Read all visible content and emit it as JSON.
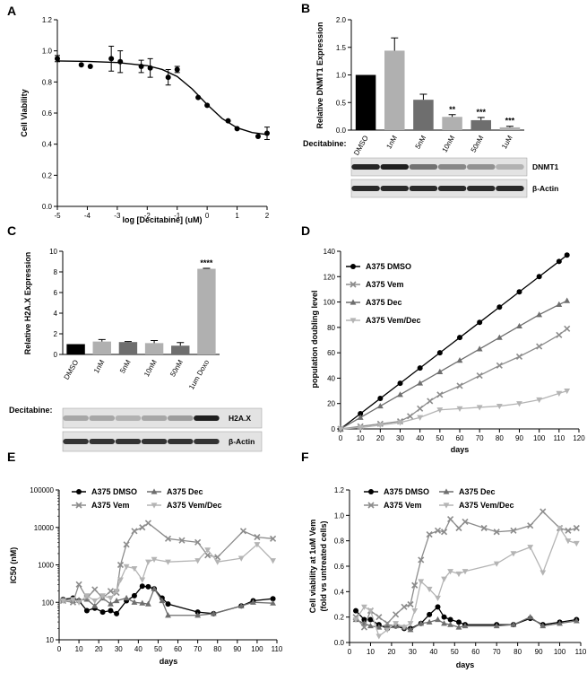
{
  "figure": {
    "colors": {
      "black": "#000000",
      "dmso_bar": "#000000",
      "bar_gray_light": "#b0b0b0",
      "bar_gray_dark": "#6e6e6e",
      "vem": "#8c8c8c",
      "dec": "#6e6e6e",
      "vem_dec": "#b4b4b4",
      "blot_bg": "#e3e3e3"
    }
  },
  "chart_data": [
    {
      "panel": "A",
      "type": "scatter",
      "title": "",
      "xlabel": "log [Decitabine] (uM)",
      "ylabel": "Cell Viability",
      "xlim": [
        -5,
        2
      ],
      "ylim": [
        0,
        1.2
      ],
      "xticks": [
        "-5",
        "-4",
        "-3",
        "-2",
        "-1",
        "0",
        "1",
        "2"
      ],
      "yticks": [
        "0.0",
        "0.2",
        "0.4",
        "0.6",
        "0.8",
        "1.0",
        "1.2"
      ],
      "points": {
        "x": [
          -5,
          -4.2,
          -3.9,
          -3.2,
          -2.9,
          -2.2,
          -1.9,
          -1.3,
          -1.0,
          -0.3,
          0.0,
          0.7,
          1.0,
          1.7,
          2.0
        ],
        "y": [
          0.95,
          0.91,
          0.9,
          0.95,
          0.93,
          0.9,
          0.89,
          0.83,
          0.88,
          0.7,
          0.65,
          0.55,
          0.5,
          0.45,
          0.47
        ],
        "err": [
          0.02,
          0.01,
          0.01,
          0.08,
          0.07,
          0.04,
          0.06,
          0.05,
          0.02,
          0.01,
          0.01,
          0.01,
          0.01,
          0.01,
          0.04
        ]
      },
      "fit": {
        "x": [
          -5,
          -4,
          -3,
          -2,
          -1.5,
          -1,
          -0.5,
          0,
          0.5,
          1,
          1.5,
          2
        ],
        "y": [
          0.935,
          0.932,
          0.925,
          0.905,
          0.88,
          0.835,
          0.755,
          0.655,
          0.565,
          0.505,
          0.475,
          0.462
        ]
      }
    },
    {
      "panel": "B",
      "type": "bar",
      "title": "",
      "xlabel": "Decitabine:",
      "ylabel": "Relative DNMT1 Expression",
      "ylim": [
        0,
        2.0
      ],
      "yticks": [
        "0.0",
        "0.5",
        "1.0",
        "1.5",
        "2.0"
      ],
      "categories": [
        "DMSO",
        "1nM",
        "5nM",
        "10nM",
        "50nM",
        "1uM"
      ],
      "values": [
        1.0,
        1.44,
        0.55,
        0.24,
        0.18,
        0.05
      ],
      "errors": [
        0.0,
        0.23,
        0.1,
        0.04,
        0.05,
        0.02
      ],
      "bar_color_keys": [
        "black",
        "bar_gray_light",
        "bar_gray_dark",
        "bar_gray_light",
        "bar_gray_dark",
        "bar_gray_light"
      ],
      "significance": [
        "",
        "",
        "",
        "**",
        "***",
        "***"
      ],
      "blots": [
        "DNMT1",
        "β-Actin"
      ],
      "blot_intensity": [
        [
          0.92,
          0.95,
          0.55,
          0.45,
          0.4,
          0.25
        ],
        [
          0.9,
          0.9,
          0.9,
          0.9,
          0.9,
          0.9
        ]
      ]
    },
    {
      "panel": "C",
      "type": "bar",
      "title": "",
      "xlabel": "Decitabine:",
      "ylabel": "Relative H2A.X Expression",
      "ylim": [
        0,
        10
      ],
      "yticks": [
        "0",
        "2",
        "4",
        "6",
        "8",
        "10"
      ],
      "categories": [
        "DMSO",
        "1nM",
        "5nM",
        "10nM",
        "50nM",
        "1um Doxo"
      ],
      "values": [
        1.0,
        1.25,
        1.2,
        1.1,
        0.85,
        8.3
      ],
      "errors": [
        0.0,
        0.2,
        0.05,
        0.25,
        0.3,
        0.05
      ],
      "bar_color_keys": [
        "black",
        "bar_gray_light",
        "bar_gray_dark",
        "bar_gray_light",
        "bar_gray_dark",
        "bar_gray_light"
      ],
      "significance": [
        "",
        "",
        "",
        "",
        "",
        "****"
      ],
      "blots": [
        "H2A.X",
        "β-Actin"
      ],
      "blot_intensity": [
        [
          0.3,
          0.3,
          0.25,
          0.3,
          0.35,
          0.95
        ],
        [
          0.85,
          0.85,
          0.85,
          0.85,
          0.85,
          0.85
        ]
      ]
    },
    {
      "panel": "D",
      "type": "line",
      "title": "",
      "xlabel": "days",
      "ylabel": "population doubling level",
      "xlim": [
        0,
        120
      ],
      "ylim": [
        0,
        140
      ],
      "xticks": [
        "0",
        "10",
        "20",
        "30",
        "40",
        "50",
        "60",
        "70",
        "80",
        "90",
        "100",
        "110",
        "120"
      ],
      "yticks": [
        "0",
        "20",
        "40",
        "60",
        "80",
        "100",
        "120",
        "140"
      ],
      "legend": [
        "A375 DMSO",
        "A375 Vem",
        "A375 Dec",
        "A375 Vem/Dec"
      ],
      "series": [
        {
          "name": "A375 DMSO",
          "color_key": "black",
          "marker": "circle",
          "x": [
            0,
            10,
            20,
            30,
            40,
            50,
            60,
            70,
            80,
            90,
            100,
            110,
            114
          ],
          "y": [
            0,
            12,
            24,
            36,
            48,
            60,
            72,
            84,
            96,
            108,
            120,
            132,
            137
          ]
        },
        {
          "name": "A375 Vem",
          "color_key": "vem",
          "marker": "x",
          "x": [
            0,
            10,
            20,
            30,
            35,
            40,
            45,
            50,
            60,
            70,
            80,
            90,
            100,
            110,
            114
          ],
          "y": [
            0,
            2,
            4,
            6,
            10,
            16,
            22,
            27,
            34,
            42,
            50,
            57,
            65,
            74,
            79
          ]
        },
        {
          "name": "A375 Dec",
          "color_key": "dec",
          "marker": "triangle",
          "x": [
            0,
            10,
            20,
            30,
            40,
            50,
            60,
            70,
            80,
            90,
            100,
            110,
            114
          ],
          "y": [
            0,
            9,
            18,
            27,
            36,
            45,
            54,
            63,
            72,
            81,
            90,
            98,
            101
          ]
        },
        {
          "name": "A375 Vem/Dec",
          "color_key": "vem_dec",
          "marker": "triangle-down",
          "x": [
            0,
            10,
            20,
            30,
            40,
            50,
            60,
            70,
            80,
            90,
            100,
            110,
            114
          ],
          "y": [
            0,
            1,
            3,
            5,
            9,
            15,
            16,
            17,
            18,
            20,
            23,
            28,
            30
          ]
        }
      ]
    },
    {
      "panel": "E",
      "type": "line",
      "title": "",
      "xlabel": "days",
      "ylabel": "IC50 (nM)",
      "xlim": [
        0,
        110
      ],
      "yscale": "log",
      "ylim": [
        10,
        100000
      ],
      "xticks": [
        "0",
        "10",
        "20",
        "30",
        "40",
        "50",
        "60",
        "70",
        "80",
        "90",
        "100",
        "110"
      ],
      "yticks": [
        "10",
        "100",
        "1000",
        "10000",
        "100000"
      ],
      "legend": [
        "A375 DMSO",
        "A375 Dec",
        "A375 Vem",
        "A375 Vem/Dec"
      ],
      "series": [
        {
          "name": "A375 DMSO",
          "color_key": "black",
          "marker": "circle",
          "x": [
            2,
            7,
            10,
            14,
            18,
            22,
            26,
            29,
            34,
            38,
            42,
            45,
            48,
            52,
            55,
            70,
            78,
            92,
            98,
            108
          ],
          "y": [
            120,
            130,
            110,
            60,
            70,
            55,
            60,
            50,
            110,
            150,
            270,
            260,
            230,
            130,
            90,
            55,
            50,
            80,
            110,
            125
          ]
        },
        {
          "name": "A375 Dec",
          "color_key": "dec",
          "marker": "triangle",
          "x": [
            2,
            7,
            10,
            14,
            18,
            22,
            26,
            29,
            34,
            38,
            42,
            45,
            48,
            52,
            55,
            70,
            78,
            92,
            98,
            108
          ],
          "y": [
            120,
            110,
            115,
            120,
            80,
            130,
            90,
            110,
            130,
            100,
            95,
            90,
            230,
            110,
            45,
            45,
            50,
            80,
            100,
            95
          ]
        },
        {
          "name": "A375 Vem",
          "color_key": "vem",
          "marker": "x",
          "x": [
            2,
            7,
            10,
            14,
            18,
            22,
            26,
            29,
            31,
            34,
            38,
            42,
            45,
            55,
            62,
            70,
            75,
            80,
            93,
            100,
            108
          ],
          "y": [
            110,
            100,
            300,
            130,
            220,
            130,
            200,
            180,
            1000,
            3500,
            8000,
            10000,
            13000,
            5000,
            4500,
            4000,
            1800,
            1600,
            8000,
            5500,
            5000
          ]
        },
        {
          "name": "A375 Vem/Dec",
          "color_key": "vem_dec",
          "marker": "triangle-down",
          "x": [
            2,
            7,
            10,
            14,
            18,
            22,
            26,
            29,
            31,
            34,
            38,
            42,
            45,
            48,
            55,
            70,
            75,
            80,
            92,
            100,
            108
          ],
          "y": [
            110,
            120,
            100,
            150,
            110,
            150,
            130,
            200,
            400,
            900,
            800,
            400,
            1200,
            1400,
            1200,
            1300,
            2500,
            1200,
            1500,
            3500,
            1300
          ]
        }
      ]
    },
    {
      "panel": "F",
      "type": "line",
      "title": "",
      "xlabel": "days",
      "ylabel": "Cell viability at 1uM Vem (fold vs untreated cells)",
      "xlim": [
        0,
        110
      ],
      "ylim": [
        0.0,
        1.2
      ],
      "xticks": [
        "0",
        "10",
        "20",
        "30",
        "40",
        "50",
        "60",
        "70",
        "80",
        "90",
        "100",
        "110"
      ],
      "yticks": [
        "0.0",
        "0.2",
        "0.4",
        "0.6",
        "0.8",
        "1.0",
        "1.2"
      ],
      "legend": [
        "A375 DMSO",
        "A375 Dec",
        "A375 Vem",
        "A375 Vem/Dec"
      ],
      "series": [
        {
          "name": "A375 DMSO",
          "color_key": "black",
          "marker": "circle",
          "x": [
            3,
            7,
            10,
            14,
            18,
            22,
            26,
            29,
            34,
            38,
            42,
            45,
            48,
            52,
            55,
            70,
            78,
            86,
            92,
            100,
            108
          ],
          "y": [
            0.25,
            0.18,
            0.18,
            0.14,
            0.11,
            0.13,
            0.11,
            0.11,
            0.15,
            0.22,
            0.28,
            0.2,
            0.18,
            0.16,
            0.14,
            0.14,
            0.14,
            0.19,
            0.14,
            0.16,
            0.18
          ]
        },
        {
          "name": "A375 Dec",
          "color_key": "dec",
          "marker": "triangle",
          "x": [
            3,
            7,
            10,
            14,
            18,
            22,
            26,
            29,
            34,
            38,
            42,
            45,
            48,
            52,
            55,
            70,
            78,
            86,
            92,
            100,
            108
          ],
          "y": [
            0.18,
            0.15,
            0.13,
            0.12,
            0.14,
            0.13,
            0.12,
            0.1,
            0.15,
            0.16,
            0.18,
            0.15,
            0.14,
            0.12,
            0.13,
            0.13,
            0.14,
            0.2,
            0.13,
            0.15,
            0.17
          ]
        },
        {
          "name": "A375 Vem",
          "color_key": "vem",
          "marker": "x",
          "x": [
            3,
            7,
            10,
            14,
            18,
            22,
            26,
            29,
            31,
            34,
            38,
            42,
            45,
            48,
            52,
            55,
            64,
            70,
            78,
            86,
            92,
            100,
            104,
            108
          ],
          "y": [
            0.2,
            0.12,
            0.25,
            0.2,
            0.15,
            0.22,
            0.28,
            0.3,
            0.45,
            0.65,
            0.85,
            0.88,
            0.87,
            0.97,
            0.9,
            0.95,
            0.9,
            0.87,
            0.88,
            0.92,
            1.03,
            0.9,
            0.88,
            0.9
          ]
        },
        {
          "name": "A375 Vem/Dec",
          "color_key": "vem_dec",
          "marker": "triangle-down",
          "x": [
            3,
            7,
            10,
            14,
            18,
            22,
            26,
            29,
            31,
            34,
            38,
            42,
            45,
            48,
            52,
            55,
            70,
            78,
            86,
            92,
            100,
            104,
            108
          ],
          "y": [
            0.18,
            0.28,
            0.25,
            0.05,
            0.1,
            0.15,
            0.12,
            0.15,
            0.25,
            0.48,
            0.42,
            0.35,
            0.5,
            0.56,
            0.54,
            0.56,
            0.62,
            0.7,
            0.75,
            0.55,
            0.9,
            0.8,
            0.78
          ]
        }
      ]
    }
  ]
}
